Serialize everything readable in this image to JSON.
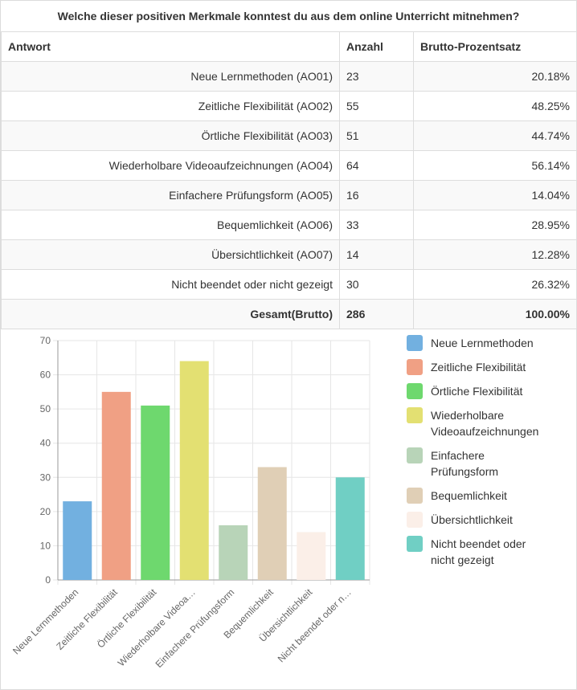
{
  "title": "Welche dieser positiven Merkmale konntest du aus dem online Unterricht mitnehmen?",
  "table": {
    "headers": [
      "Antwort",
      "Anzahl",
      "Brutto-Prozentsatz"
    ],
    "rows": [
      {
        "answer": "Neue Lernmethoden (AO01)",
        "count": "23",
        "percent": "20.18%"
      },
      {
        "answer": "Zeitliche Flexibilität (AO02)",
        "count": "55",
        "percent": "48.25%"
      },
      {
        "answer": "Örtliche Flexibilität (AO03)",
        "count": "51",
        "percent": "44.74%"
      },
      {
        "answer": "Wiederholbare Videoaufzeichnungen (AO04)",
        "count": "64",
        "percent": "56.14%"
      },
      {
        "answer": "Einfachere Prüfungsform (AO05)",
        "count": "16",
        "percent": "14.04%"
      },
      {
        "answer": "Bequemlichkeit (AO06)",
        "count": "33",
        "percent": "28.95%"
      },
      {
        "answer": "Übersichtlichkeit (AO07)",
        "count": "14",
        "percent": "12.28%"
      },
      {
        "answer": "Nicht beendet oder nicht gezeigt",
        "count": "30",
        "percent": "26.32%"
      }
    ],
    "total": {
      "label": "Gesamt(Brutto)",
      "count": "286",
      "percent": "100.00%"
    }
  },
  "chart_data": {
    "type": "bar",
    "categories": [
      "Neue Lernmethoden",
      "Zeitliche Flexibilität",
      "Örtliche Flexibilität",
      "Wiederholbare Videoaufzeichnungen",
      "Einfachere Prüfungsform",
      "Bequemlichkeit",
      "Übersichtlichkeit",
      "Nicht beendet oder nicht gezeigt"
    ],
    "tick_labels": [
      "Neue Lernmethoden",
      "Zeitliche Flexibilität",
      "Örtliche Flexibilität",
      "Wiederholbare Videoa…",
      "Einfachere Prüfungsform",
      "Bequemlichkeit",
      "Übersichtlichkeit",
      "Nicht beendet oder n…"
    ],
    "values": [
      23,
      55,
      51,
      64,
      16,
      33,
      14,
      30
    ],
    "colors": [
      "#72b0e0",
      "#f0a084",
      "#6ed86e",
      "#e3e072",
      "#b8d4b8",
      "#e0cfb6",
      "#fbefe8",
      "#70cfc4"
    ],
    "legend_labels": [
      [
        "Neue Lernmethoden"
      ],
      [
        "Zeitliche Flexibilität"
      ],
      [
        "Örtliche Flexibilität"
      ],
      [
        "Wiederholbare",
        "Videoaufzeichnungen"
      ],
      [
        "Einfachere",
        "Prüfungsform"
      ],
      [
        "Bequemlichkeit"
      ],
      [
        "Übersichtlichkeit"
      ],
      [
        "Nicht beendet oder",
        "nicht gezeigt"
      ]
    ],
    "yticks": [
      0,
      10,
      20,
      30,
      40,
      50,
      60,
      70
    ],
    "ylim": [
      0,
      70
    ],
    "grid": true,
    "legend_position": "right"
  }
}
